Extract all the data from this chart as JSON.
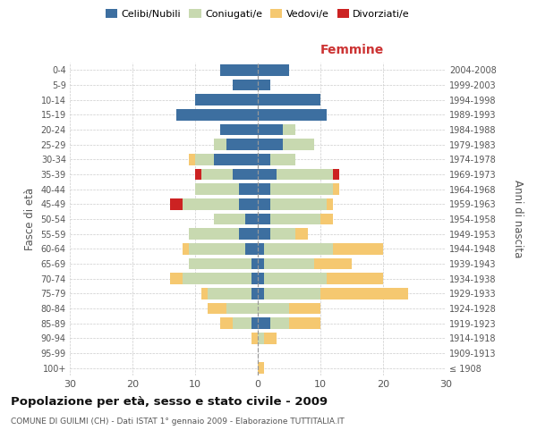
{
  "age_groups": [
    "100+",
    "95-99",
    "90-94",
    "85-89",
    "80-84",
    "75-79",
    "70-74",
    "65-69",
    "60-64",
    "55-59",
    "50-54",
    "45-49",
    "40-44",
    "35-39",
    "30-34",
    "25-29",
    "20-24",
    "15-19",
    "10-14",
    "5-9",
    "0-4"
  ],
  "birth_years": [
    "≤ 1908",
    "1909-1913",
    "1914-1918",
    "1919-1923",
    "1924-1928",
    "1929-1933",
    "1934-1938",
    "1939-1943",
    "1944-1948",
    "1949-1953",
    "1954-1958",
    "1959-1963",
    "1964-1968",
    "1969-1973",
    "1974-1978",
    "1979-1983",
    "1984-1988",
    "1989-1993",
    "1994-1998",
    "1999-2003",
    "2004-2008"
  ],
  "male": {
    "celibi": [
      0,
      0,
      0,
      1,
      0,
      1,
      1,
      1,
      2,
      3,
      2,
      3,
      3,
      4,
      7,
      5,
      6,
      13,
      10,
      4,
      6
    ],
    "coniugati": [
      0,
      0,
      0,
      3,
      5,
      7,
      11,
      10,
      9,
      8,
      5,
      9,
      7,
      5,
      3,
      2,
      0,
      0,
      0,
      0,
      0
    ],
    "vedovi": [
      0,
      0,
      1,
      2,
      3,
      1,
      2,
      0,
      1,
      0,
      0,
      0,
      0,
      0,
      1,
      0,
      0,
      0,
      0,
      0,
      0
    ],
    "divorziati": [
      0,
      0,
      0,
      0,
      0,
      0,
      0,
      0,
      0,
      0,
      0,
      2,
      0,
      1,
      0,
      0,
      0,
      0,
      0,
      0,
      0
    ]
  },
  "female": {
    "nubili": [
      0,
      0,
      0,
      2,
      0,
      1,
      1,
      1,
      1,
      2,
      2,
      2,
      2,
      3,
      2,
      4,
      4,
      11,
      10,
      2,
      5
    ],
    "coniugate": [
      0,
      0,
      1,
      3,
      5,
      9,
      10,
      8,
      11,
      4,
      8,
      9,
      10,
      9,
      4,
      5,
      2,
      0,
      0,
      0,
      0
    ],
    "vedove": [
      1,
      0,
      2,
      5,
      5,
      14,
      9,
      6,
      8,
      2,
      2,
      1,
      1,
      0,
      0,
      0,
      0,
      0,
      0,
      0,
      0
    ],
    "divorziate": [
      0,
      0,
      0,
      0,
      0,
      0,
      0,
      0,
      0,
      0,
      0,
      0,
      0,
      1,
      0,
      0,
      0,
      0,
      0,
      0,
      0
    ]
  },
  "colors": {
    "celibi": "#3d6fa0",
    "coniugati": "#c8d9b0",
    "vedovi": "#f5c870",
    "divorziati": "#cc2222"
  },
  "xlim": 30,
  "title": "Popolazione per età, sesso e stato civile - 2009",
  "subtitle": "COMUNE DI GUILMI (CH) - Dati ISTAT 1° gennaio 2009 - Elaborazione TUTTITALIA.IT",
  "ylabel_left": "Fasce di età",
  "ylabel_right": "Anni di nascita",
  "xlabel_right": "Femmine",
  "legend_labels": [
    "Celibi/Nubili",
    "Coniugati/e",
    "Vedovi/e",
    "Divorziati/e"
  ]
}
